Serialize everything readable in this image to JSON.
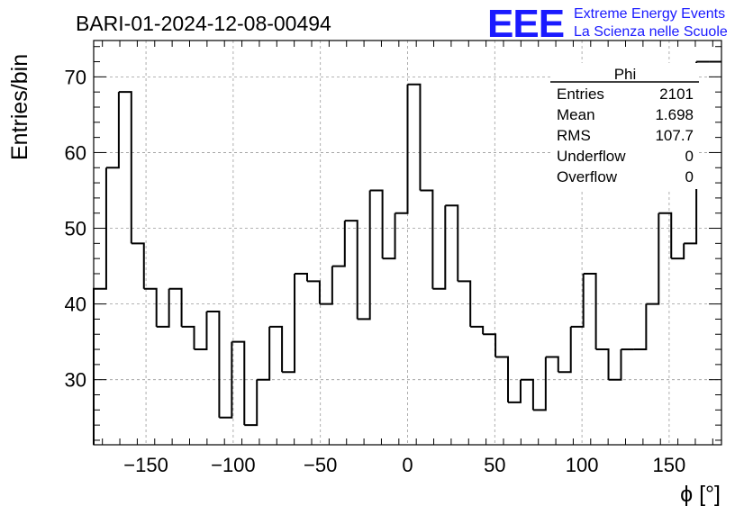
{
  "title": "BARI-01-2024-12-08-00494",
  "logo": {
    "mark": "EEE",
    "line1": "Extreme Energy Events",
    "line2": "La Scienza nelle Scuole",
    "color": "#1a1aff"
  },
  "stats_box": {
    "name": "Phi",
    "rows": [
      {
        "label": "Entries",
        "value": "2101"
      },
      {
        "label": "Mean",
        "value": "1.698"
      },
      {
        "label": "RMS",
        "value": "107.7"
      },
      {
        "label": "Underflow",
        "value": "0"
      },
      {
        "label": "Overflow",
        "value": "0"
      }
    ]
  },
  "chart_data": {
    "type": "histogram",
    "title": "BARI-01-2024-12-08-00494",
    "xlabel": "ϕ [°]",
    "ylabel": "Entries/bin",
    "xlim": [
      -180,
      180
    ],
    "ylim": [
      21.4,
      74.8
    ],
    "bin_width": 7.2,
    "grid": true,
    "x_ticks": [
      -150,
      -100,
      -50,
      0,
      50,
      100,
      150
    ],
    "x_tick_labels": [
      "−150",
      "−100",
      "−50",
      "0",
      "50",
      "100",
      "150"
    ],
    "y_ticks": [
      30,
      40,
      50,
      60,
      70
    ],
    "y_tick_labels": [
      "30",
      "40",
      "50",
      "60",
      "70"
    ],
    "values": [
      42,
      58,
      68,
      48,
      42,
      37,
      42,
      37,
      34,
      39,
      25,
      35,
      24,
      30,
      37,
      31,
      44,
      43,
      40,
      45,
      51,
      38,
      55,
      46,
      52,
      69,
      55,
      42,
      53,
      43,
      37,
      36,
      33,
      27,
      30,
      26,
      33,
      31,
      37,
      44,
      34,
      30,
      34,
      34,
      40,
      52,
      46,
      48,
      72,
      72
    ]
  }
}
